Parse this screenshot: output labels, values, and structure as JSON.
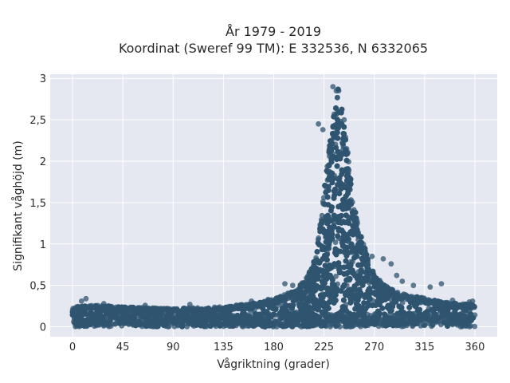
{
  "chart_data": {
    "type": "scatter",
    "title_lines": [
      "År 1979 - 2019",
      "Koordinat (Sweref 99 TM): E 332536, N 6332065"
    ],
    "xlabel": "Vågriktning (grader)",
    "ylabel": "Signifikant våghöjd (m)",
    "xlim": [
      -20,
      380
    ],
    "ylim": [
      -0.12,
      3.05
    ],
    "x_ticks": [
      0,
      45,
      90,
      135,
      180,
      225,
      270,
      315,
      360
    ],
    "x_tick_labels": [
      "0",
      "45",
      "90",
      "135",
      "180",
      "225",
      "270",
      "315",
      "360"
    ],
    "y_ticks": [
      0,
      0.5,
      1,
      1.5,
      2,
      2.5,
      3
    ],
    "y_tick_labels": [
      "0",
      "0,5",
      "1",
      "1,5",
      "2",
      "2,5",
      "3"
    ],
    "grid": true,
    "legend": "none",
    "colors": {
      "marker": "#2f5470",
      "plot_bg": "#e5e8f0",
      "grid": "#ffffff"
    },
    "series": [
      {
        "envelope_direction_deg": [
          0,
          20,
          45,
          90,
          135,
          170,
          185,
          200,
          210,
          218,
          222,
          226,
          230,
          233,
          236,
          238,
          241,
          244,
          248,
          252,
          258,
          265,
          272,
          280,
          290,
          300,
          315,
          330,
          345,
          360
        ],
        "envelope_max_height_m": [
          0.24,
          0.26,
          0.24,
          0.22,
          0.24,
          0.3,
          0.36,
          0.45,
          0.6,
          0.85,
          1.3,
          1.8,
          2.2,
          2.5,
          2.75,
          2.9,
          2.7,
          2.4,
          1.9,
          1.45,
          1.1,
          0.8,
          0.6,
          0.5,
          0.42,
          0.38,
          0.35,
          0.3,
          0.28,
          0.27
        ],
        "outliers": [
          [
            8,
            0.31
          ],
          [
            12,
            0.34
          ],
          [
            28,
            0.28
          ],
          [
            65,
            0.26
          ],
          [
            105,
            0.27
          ],
          [
            160,
            0.31
          ],
          [
            175,
            0.33
          ],
          [
            190,
            0.52
          ],
          [
            197,
            0.5
          ],
          [
            233,
            2.9
          ],
          [
            236,
            2.85
          ],
          [
            237,
            2.77
          ],
          [
            220,
            2.45
          ],
          [
            224,
            2.38
          ],
          [
            243,
            2.5
          ],
          [
            245,
            1.46
          ],
          [
            250,
            1.32
          ],
          [
            255,
            1.1
          ],
          [
            260,
            0.95
          ],
          [
            268,
            0.85
          ],
          [
            278,
            0.82
          ],
          [
            285,
            0.76
          ],
          [
            290,
            0.62
          ],
          [
            295,
            0.55
          ],
          [
            305,
            0.5
          ],
          [
            320,
            0.48
          ],
          [
            330,
            0.52
          ],
          [
            340,
            0.32
          ],
          [
            355,
            0.3
          ],
          [
            358,
            0.31
          ]
        ]
      }
    ]
  }
}
